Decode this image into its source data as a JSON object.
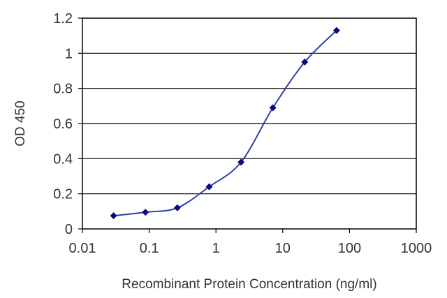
{
  "chart_data": {
    "type": "line",
    "title": "",
    "xlabel": "Recombinant Protein Concentration (ng/ml)",
    "ylabel": "OD 450",
    "x_scale": "log",
    "xlim": [
      0.01,
      1000
    ],
    "ylim": [
      0,
      1.2
    ],
    "x_ticks": [
      "0.01",
      "0.1",
      "1",
      "10",
      "100",
      "1000"
    ],
    "y_ticks": [
      "0",
      "0.2",
      "0.4",
      "0.6",
      "0.8",
      "1",
      "1.2"
    ],
    "grid": "horizontal",
    "legend": "none",
    "series": [
      {
        "x": [
          0.0293,
          0.0879,
          0.2637,
          0.791,
          2.373,
          7.119,
          21.36,
          64.07
        ],
        "values": [
          0.075,
          0.095,
          0.12,
          0.24,
          0.38,
          0.69,
          0.95,
          1.13
        ],
        "color": "#2b3fa8",
        "marker_color": "#0a0a80"
      }
    ]
  }
}
